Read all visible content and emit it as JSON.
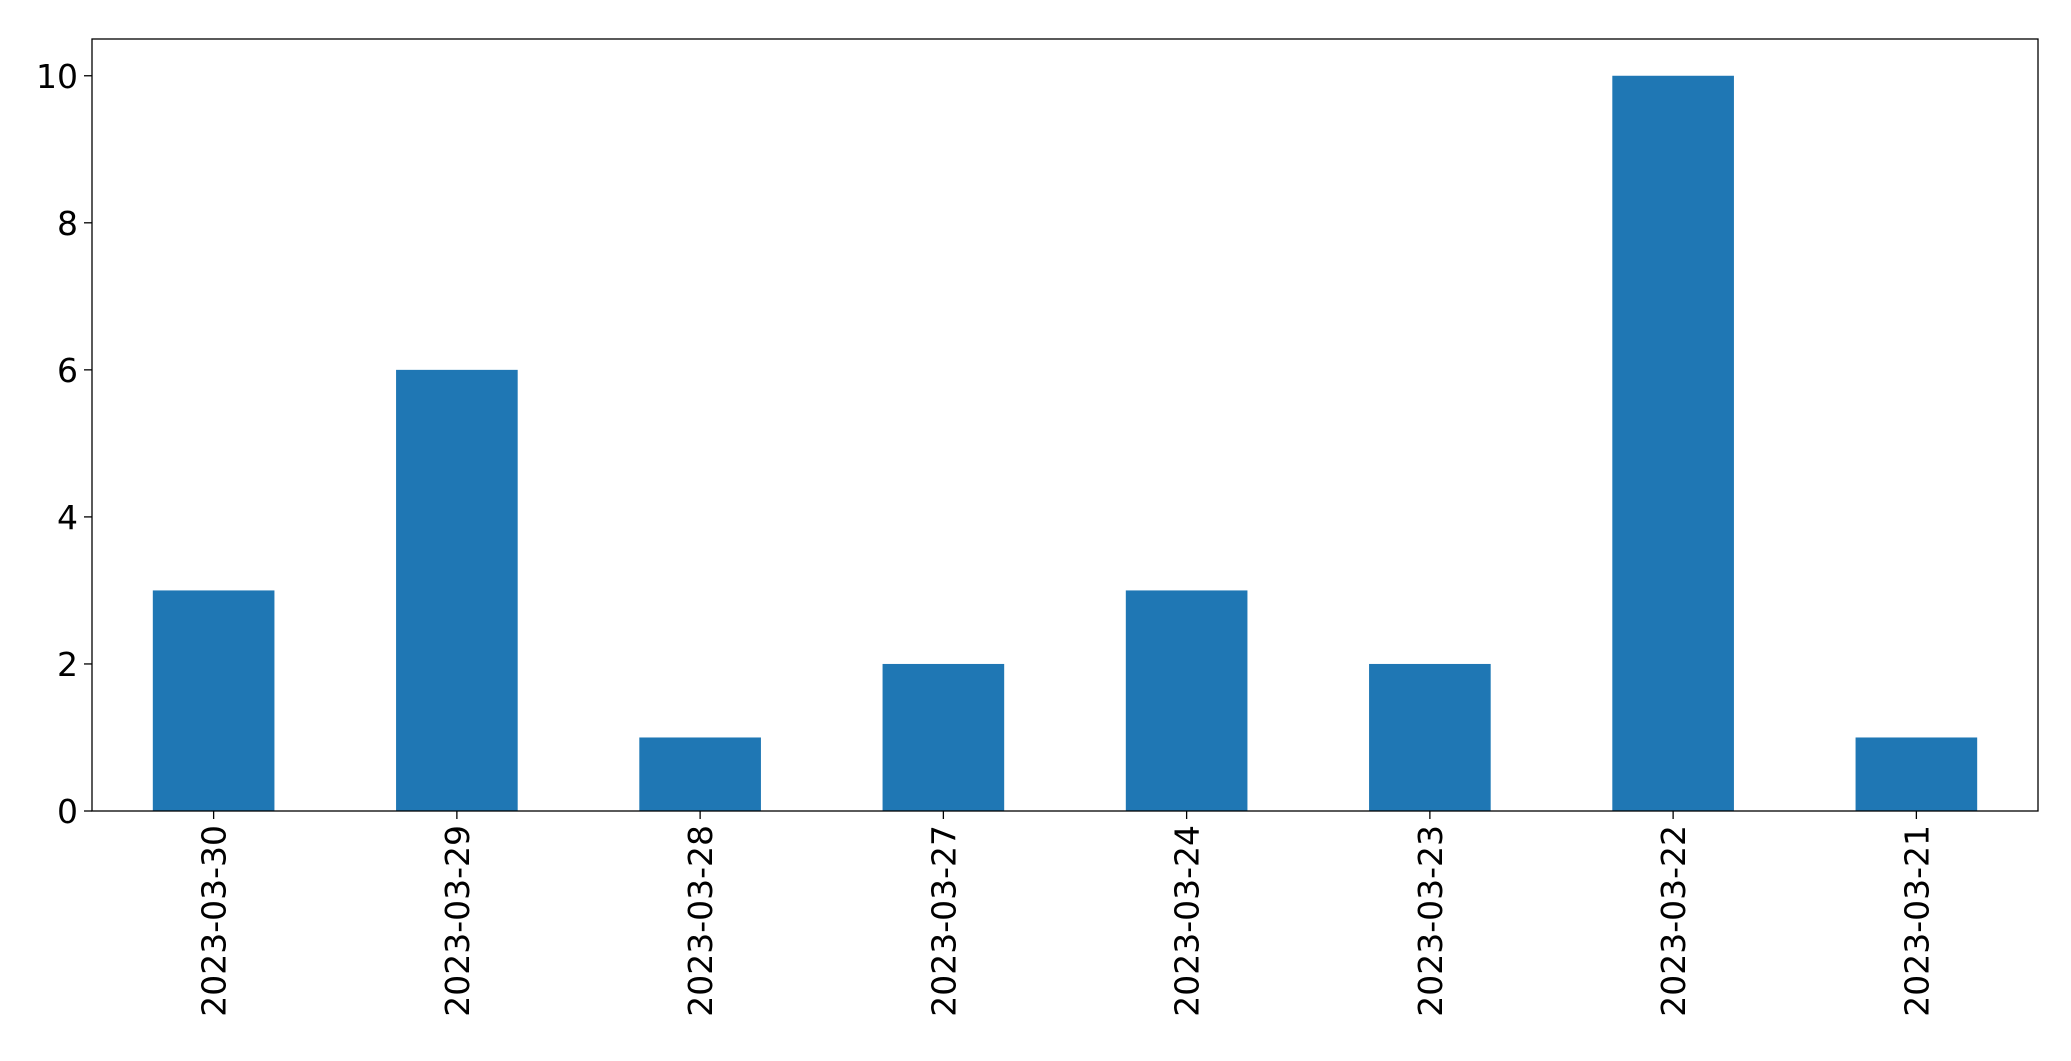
{
  "chart_data": {
    "type": "bar",
    "categories": [
      "2023-03-30",
      "2023-03-29",
      "2023-03-28",
      "2023-03-27",
      "2023-03-24",
      "2023-03-23",
      "2023-03-22",
      "2023-03-21"
    ],
    "values": [
      3,
      6,
      1,
      2,
      3,
      2,
      10,
      1
    ],
    "title": "",
    "xlabel": "",
    "ylabel": "",
    "ylim": [
      0,
      10.5
    ],
    "yticks": [
      0,
      2,
      4,
      6,
      8,
      10
    ],
    "grid": false,
    "bar_color": "#1f77b4"
  }
}
